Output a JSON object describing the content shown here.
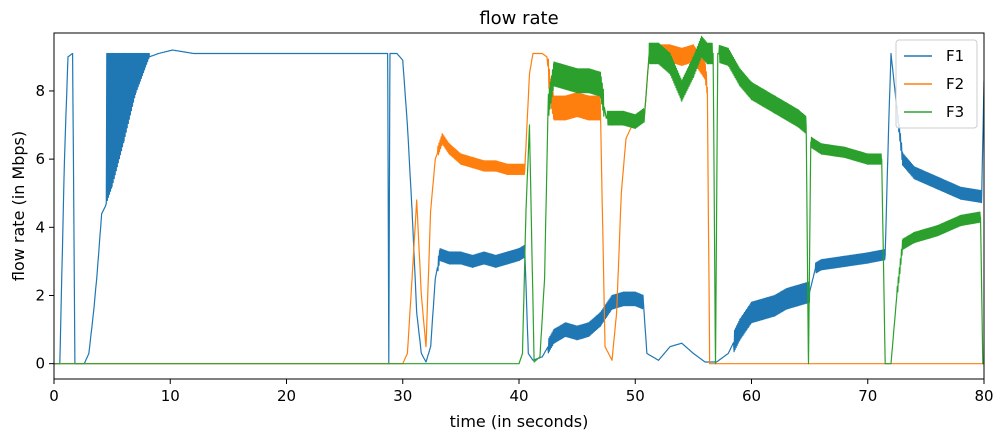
{
  "chart_data": {
    "type": "line",
    "title": "flow rate",
    "xlabel": "time (in seconds)",
    "ylabel": "flow rate (in Mbps)",
    "xlim": [
      0,
      80
    ],
    "ylim": [
      -0.45,
      9.7
    ],
    "xticks": [
      0,
      10,
      20,
      30,
      40,
      50,
      60,
      70,
      80
    ],
    "yticks": [
      0,
      2,
      4,
      6,
      8
    ],
    "grid": false,
    "legend_position": "top-right",
    "series": [
      {
        "name": "F1",
        "color": "#1f77b4",
        "points": [
          [
            0,
            0
          ],
          [
            0.5,
            0
          ],
          [
            0.9,
            6
          ],
          [
            1.2,
            9.0
          ],
          [
            1.6,
            9.1
          ],
          [
            1.8,
            0
          ],
          [
            2.6,
            0
          ],
          [
            3.0,
            0.3
          ],
          [
            3.4,
            1.5
          ],
          [
            3.7,
            2.6
          ],
          [
            4.1,
            4.4
          ],
          [
            4.4,
            4.6
          ],
          [
            5.0,
            5.2
          ],
          [
            6.0,
            6.5
          ],
          [
            7.0,
            7.9
          ],
          [
            8.2,
            9.0
          ],
          [
            9.0,
            9.1
          ],
          [
            10.2,
            9.2
          ],
          [
            12,
            9.1
          ],
          [
            15,
            9.1
          ],
          [
            20,
            9.1
          ],
          [
            25,
            9.1
          ],
          [
            28.7,
            9.1
          ],
          [
            28.8,
            0
          ],
          [
            28.9,
            9.1
          ],
          [
            29.5,
            9.1
          ],
          [
            30.0,
            8.9
          ],
          [
            30.4,
            7.0
          ],
          [
            30.8,
            4.5
          ],
          [
            31.2,
            1.5
          ],
          [
            31.6,
            0.3
          ],
          [
            32.0,
            0.05
          ],
          [
            32.4,
            0.5
          ],
          [
            32.8,
            2.5
          ],
          [
            33.2,
            3.2
          ],
          [
            34,
            3.1
          ],
          [
            35,
            3.1
          ],
          [
            36,
            3.0
          ],
          [
            37,
            3.1
          ],
          [
            38,
            3.0
          ],
          [
            39,
            3.1
          ],
          [
            40.0,
            3.2
          ],
          [
            40.5,
            3.3
          ],
          [
            40.8,
            0.3
          ],
          [
            41.2,
            0.1
          ],
          [
            42,
            0.2
          ],
          [
            43,
            0.8
          ],
          [
            44,
            1.0
          ],
          [
            45,
            0.9
          ],
          [
            46,
            1.0
          ],
          [
            47,
            1.3
          ],
          [
            48,
            1.8
          ],
          [
            49,
            1.9
          ],
          [
            50,
            1.9
          ],
          [
            50.7,
            1.8
          ],
          [
            51.0,
            0.3
          ],
          [
            52,
            0.1
          ],
          [
            53,
            0.5
          ],
          [
            54,
            0.6
          ],
          [
            55,
            0.3
          ],
          [
            56,
            0.05
          ],
          [
            57,
            0.05
          ],
          [
            58,
            0.3
          ],
          [
            59,
            1.0
          ],
          [
            60,
            1.5
          ],
          [
            61,
            1.6
          ],
          [
            62,
            1.7
          ],
          [
            63,
            1.9
          ],
          [
            64,
            2.0
          ],
          [
            65.0,
            2.1
          ],
          [
            65.5,
            2.8
          ],
          [
            66,
            2.9
          ],
          [
            68,
            3.0
          ],
          [
            70,
            3.1
          ],
          [
            71.5,
            3.2
          ],
          [
            71.8,
            7.0
          ],
          [
            72.0,
            9.1
          ],
          [
            72.5,
            7.5
          ],
          [
            73,
            6.0
          ],
          [
            74,
            5.6
          ],
          [
            76,
            5.3
          ],
          [
            78,
            5.0
          ],
          [
            79.8,
            4.9
          ],
          [
            80,
            8.3
          ]
        ]
      },
      {
        "name": "F2",
        "color": "#ff7f0e",
        "points": [
          [
            0,
            0
          ],
          [
            30.0,
            0
          ],
          [
            30.4,
            0.3
          ],
          [
            30.8,
            2.5
          ],
          [
            31.2,
            4.8
          ],
          [
            31.6,
            2.0
          ],
          [
            32.0,
            0.5
          ],
          [
            32.4,
            4.5
          ],
          [
            32.8,
            6.0
          ],
          [
            33.4,
            6.6
          ],
          [
            34,
            6.3
          ],
          [
            35,
            6.0
          ],
          [
            36,
            5.9
          ],
          [
            37,
            5.8
          ],
          [
            38,
            5.8
          ],
          [
            39,
            5.7
          ],
          [
            40.0,
            5.7
          ],
          [
            40.5,
            5.7
          ],
          [
            40.9,
            8.5
          ],
          [
            41.2,
            9.1
          ],
          [
            42,
            9.1
          ],
          [
            42.4,
            9.0
          ],
          [
            42.7,
            8.0
          ],
          [
            43,
            7.5
          ],
          [
            44,
            7.5
          ],
          [
            45,
            7.6
          ],
          [
            46,
            7.5
          ],
          [
            47.0,
            7.5
          ],
          [
            47.4,
            0.5
          ],
          [
            48,
            0.1
          ],
          [
            48.4,
            1.5
          ],
          [
            48.8,
            5.0
          ],
          [
            49.2,
            6.6
          ],
          [
            50,
            7.2
          ],
          [
            50.8,
            7.3
          ],
          [
            51.2,
            9.1
          ],
          [
            53,
            9.1
          ],
          [
            54,
            9.0
          ],
          [
            55,
            9.1
          ],
          [
            56,
            8.6
          ],
          [
            56.2,
            8.1
          ],
          [
            56.4,
            0
          ],
          [
            80,
            0
          ]
        ]
      },
      {
        "name": "F3",
        "color": "#2ca02c",
        "points": [
          [
            0,
            0
          ],
          [
            40.0,
            0
          ],
          [
            40.3,
            0.3
          ],
          [
            40.6,
            4.5
          ],
          [
            40.9,
            7.0
          ],
          [
            41.3,
            0.05
          ],
          [
            41.8,
            0.2
          ],
          [
            42.2,
            2.5
          ],
          [
            42.5,
            7.5
          ],
          [
            43,
            8.5
          ],
          [
            44,
            8.4
          ],
          [
            45,
            8.3
          ],
          [
            46,
            8.3
          ],
          [
            47,
            8.2
          ],
          [
            47.5,
            7.2
          ],
          [
            48,
            7.2
          ],
          [
            49,
            7.2
          ],
          [
            50,
            7.1
          ],
          [
            50.8,
            7.3
          ],
          [
            51.2,
            9.1
          ],
          [
            52,
            9.1
          ],
          [
            53,
            8.8
          ],
          [
            54,
            8.0
          ],
          [
            55,
            8.7
          ],
          [
            55.7,
            9.3
          ],
          [
            56.2,
            9.1
          ],
          [
            56.7,
            9.1
          ],
          [
            56.9,
            0
          ],
          [
            57.1,
            9.1
          ],
          [
            58,
            9.0
          ],
          [
            59,
            8.4
          ],
          [
            60,
            8.0
          ],
          [
            61,
            7.8
          ],
          [
            62,
            7.6
          ],
          [
            63,
            7.4
          ],
          [
            64,
            7.2
          ],
          [
            64.7,
            7.0
          ],
          [
            64.9,
            0
          ],
          [
            65.1,
            6.5
          ],
          [
            66,
            6.3
          ],
          [
            68,
            6.2
          ],
          [
            70,
            6.0
          ],
          [
            71.2,
            6.0
          ],
          [
            71.5,
            0
          ],
          [
            72.0,
            0
          ],
          [
            72.5,
            2.0
          ],
          [
            73.0,
            3.5
          ],
          [
            74,
            3.7
          ],
          [
            76,
            3.9
          ],
          [
            78,
            4.2
          ],
          [
            79.7,
            4.3
          ],
          [
            79.9,
            0
          ],
          [
            80,
            0
          ]
        ]
      }
    ],
    "noise": [
      {
        "series": "F1",
        "from": 4.5,
        "to": 8.2,
        "lo": "ramp",
        "amp": 0
      },
      {
        "series": "F1",
        "from": 33.0,
        "to": 40.5,
        "amp": 0.35
      },
      {
        "series": "F1",
        "from": 42.5,
        "to": 50.7,
        "amp": 0.4
      },
      {
        "series": "F1",
        "from": 58.5,
        "to": 65.0,
        "amp": 0.6
      },
      {
        "series": "F1",
        "from": 65.5,
        "to": 71.5,
        "amp": 0.3
      },
      {
        "series": "F1",
        "from": 72.5,
        "to": 79.8,
        "amp": 0.35
      },
      {
        "series": "F2",
        "from": 33.0,
        "to": 40.5,
        "amp": 0.3
      },
      {
        "series": "F2",
        "from": 42.5,
        "to": 47.0,
        "amp": 0.7
      },
      {
        "series": "F2",
        "from": 51.2,
        "to": 56.2,
        "amp": 0.5
      },
      {
        "series": "F3",
        "from": 42.5,
        "to": 47.3,
        "amp": 0.7
      },
      {
        "series": "F3",
        "from": 47.6,
        "to": 50.8,
        "amp": 0.4
      },
      {
        "series": "F3",
        "from": 51.2,
        "to": 56.7,
        "amp": 0.6
      },
      {
        "series": "F3",
        "from": 57.2,
        "to": 64.7,
        "amp": 0.5
      },
      {
        "series": "F3",
        "from": 65.1,
        "to": 71.2,
        "amp": 0.3
      },
      {
        "series": "F3",
        "from": 72.5,
        "to": 79.7,
        "amp": 0.3
      }
    ]
  }
}
